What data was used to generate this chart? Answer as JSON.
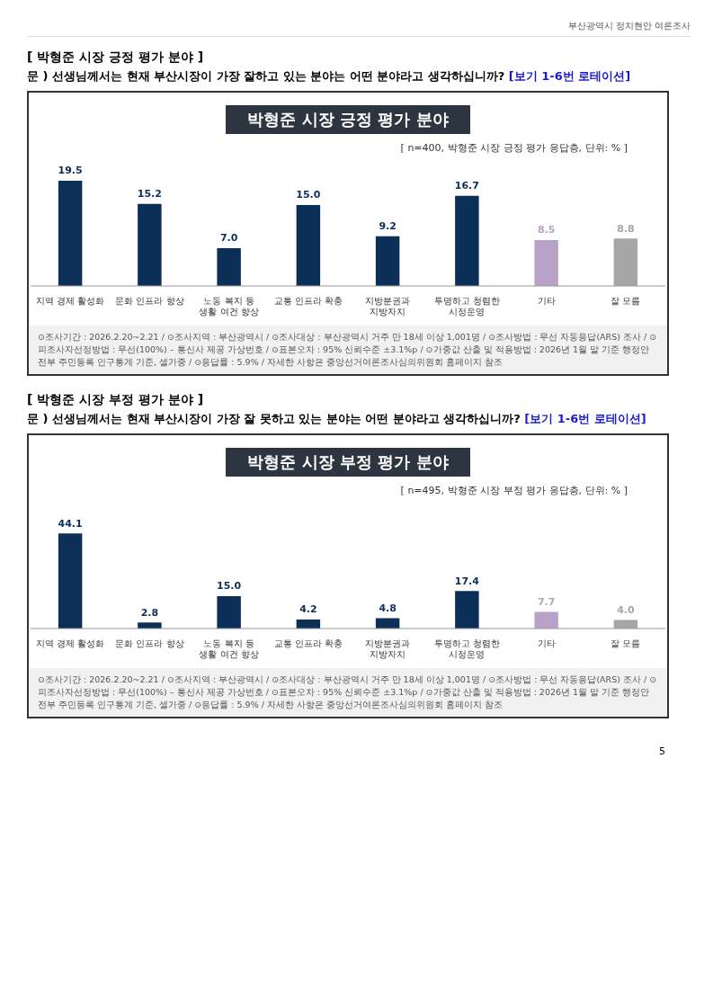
{
  "chart_data": [
    {
      "type": "bar",
      "title": "박형준 시장 긍정 평가 분야",
      "subtitle": "[ n=400, 박형준 시장 긍정 평가 응답층, 단위: % ]",
      "categories": [
        "지역 경제 활성화",
        "문화 인프라 향상",
        "노동 복지 등\n생활 여건 향상",
        "교통 인프라 확충",
        "지방분권과\n지방자치",
        "투명하고 청렴한\n시정운영",
        "기타",
        "잘 모름"
      ],
      "values": [
        19.5,
        15.2,
        7.0,
        15.0,
        9.2,
        16.7,
        8.5,
        8.8
      ],
      "value_labels": [
        "19.5",
        "15.2",
        "7.0",
        "15.0",
        "9.2",
        "16.7",
        "8.5",
        "8.8"
      ],
      "colors": [
        "#0b2f57",
        "#0b2f57",
        "#0b2f57",
        "#0b2f57",
        "#0b2f57",
        "#0b2f57",
        "#b9a2c8",
        "#a6a6a6"
      ],
      "annotations": [
        "부산광역시 정치현안 여론조사",
        "[ 박형준 시장 긍정 평가 분야 ]",
        "문 )   선생님께서는 현재 부산시장이 가장 잘하고 있는 분야는 어떤 분야라고 생각하십니까? [보기 1-6번 로테이션]",
        "⊙조사기간 : 2026.2.20~2.21 / ⊙조사지역 : 부산광역시 / ⊙조사대상 : 부산광역시 거주 만 18세 이상 1,001명 / ⊙조사방법 : 무선 자동응답(ARS) 조사 / ⊙피조사자선정방법 : 무선(100%) – 통신사 제공 가상번호 / ⊙표본오차 : 95% 신뢰수준 ±3.1%p / ⊙가중값 산출 및 적용방법 : 2026년 1월 말 기준 행정안전부 주민등록 인구통계 기준, 셀가중 / ⊙응답률 : 5.9% / 자세한 사항은 중앙선거여론조사심의위원회 홈페이지 참조"
      ]
    },
    {
      "type": "bar",
      "title": "박형준 시장 부정 평가 분야",
      "subtitle": "[ n=495, 박형준 시장 부정 평가 응답층, 단위: % ]",
      "categories": [
        "지역 경제 활성화",
        "문화 인프라 향상",
        "노동 복지 등\n생활 여건 향상",
        "교통 인프라 확충",
        "지방분권과\n지방자치",
        "투명하고 청렴한\n시정운영",
        "기타",
        "잘 모름"
      ],
      "values": [
        44.1,
        2.8,
        15.0,
        4.2,
        4.8,
        17.4,
        7.7,
        4.0
      ],
      "value_labels": [
        "44.1",
        "2.8",
        "15.0",
        "4.2",
        "4.8",
        "17.4",
        "7.7",
        "4.0"
      ],
      "colors": [
        "#0b2f57",
        "#0b2f57",
        "#0b2f57",
        "#0b2f57",
        "#0b2f57",
        "#0b2f57",
        "#b9a2c8",
        "#a6a6a6"
      ],
      "annotations": [
        "[ 박형준 시장 부정 평가 분야 ]",
        "문 )   선생님께서는 현재 부산시장이 가장 잘 못하고 있는 분야는 어떤 분야라고 생각하십니까? [보기 1-6번 로테이션]",
        "⊙조사기간 : 2026.2.20~2.21 / ⊙조사지역 : 부산광역시 / ⊙조사대상 : 부산광역시 거주 만 18세 이상 1,001명 / ⊙조사방법 : 무선 자동응답(ARS) 조사 / ⊙피조사자선정방법 : 무선(100%) – 통신사 제공 가상번호 / ⊙표본오차 : 95% 신뢰수준 ±3.1%p / ⊙가중값 산출 및 적용방법 : 2026년 1월 말 기준 행정안전부 주민등록 인구통계 기준, 셀가중 / ⊙응답률 : 5.9% / 자세한 사항은 중앙선거여론조사심의위원회 홈페이지 참조",
        "5"
      ]
    }
  ]
}
